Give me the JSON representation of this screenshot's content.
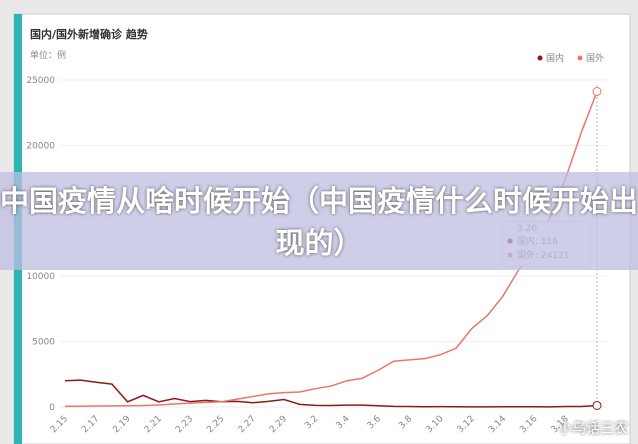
{
  "chart_data": {
    "type": "line",
    "title": "国内/国外新增确诊 趋势",
    "unit_label": "单位：例",
    "categories": [
      "2.15",
      null,
      "2.17",
      null,
      "2.19",
      null,
      "2.21",
      null,
      "2.23",
      null,
      "2.25",
      null,
      "2.27",
      null,
      "2.29",
      null,
      "3.2",
      null,
      "3.4",
      null,
      "3.6",
      null,
      "3.8",
      null,
      "3.10",
      null,
      "3.12",
      null,
      "3.14",
      null,
      "3.16",
      null,
      "3.18",
      null,
      "3.20"
    ],
    "series": [
      {
        "name": "国内",
        "color": "#8b1a1a",
        "values": [
          2009,
          2051,
          1891,
          1751,
          394,
          889,
          397,
          648,
          409,
          508,
          406,
          433,
          327,
          427,
          573,
          202,
          125,
          119,
          139,
          143,
          99,
          44,
          40,
          19,
          24,
          15,
          8,
          11,
          20,
          16,
          21,
          13,
          34,
          39,
          116
        ]
      },
      {
        "name": "国外",
        "color": "#e8776a",
        "values": [
          50,
          60,
          80,
          90,
          100,
          110,
          150,
          230,
          300,
          350,
          400,
          600,
          800,
          1000,
          1100,
          1150,
          1400,
          1600,
          2000,
          2200,
          2800,
          3500,
          3600,
          3700,
          4000,
          4500,
          6000,
          7000,
          8500,
          10500,
          12000,
          14500,
          17500,
          21000,
          24121
        ]
      }
    ],
    "ylim": [
      0,
      25000
    ],
    "yticks": [
      0,
      5000,
      10000,
      15000,
      20000,
      25000
    ],
    "grid": true,
    "legend": "top-right",
    "tooltip": {
      "items": [
        "国内: 116",
        "国外: 24121"
      ]
    },
    "banner": "中国疫情从啥时候开始（中国疫情什么时候开始出现的）",
    "watermark": "小乌话三农"
  }
}
